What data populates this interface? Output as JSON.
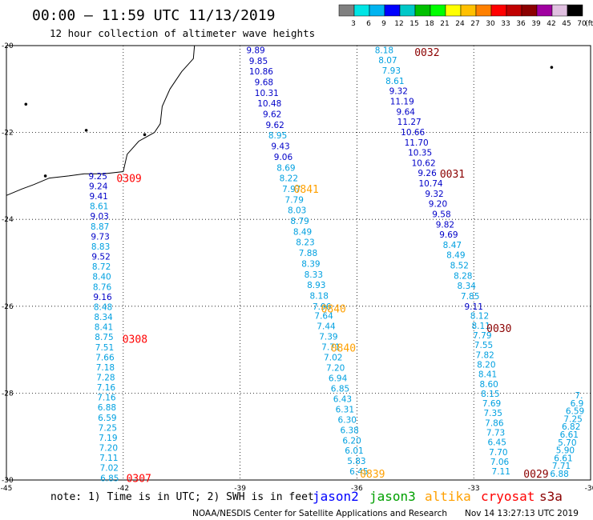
{
  "header": {
    "title": "00:00 – 11:59 UTC 11/13/2019",
    "subtitle": "12 hour collection of altimeter wave heights"
  },
  "colorbar": {
    "colors": [
      "#808080",
      "#00e5e5",
      "#00b4f0",
      "#0000ff",
      "#00c8c8",
      "#00c000",
      "#00ff00",
      "#ffff00",
      "#ffc000",
      "#ff8000",
      "#ff0000",
      "#c00000",
      "#8b0000",
      "#a000a0",
      "#e0c0e0",
      "#000000"
    ],
    "labels": [
      "3",
      "6",
      "9",
      "12",
      "15",
      "18",
      "21",
      "24",
      "27",
      "30",
      "33",
      "36",
      "39",
      "42",
      "45",
      "70"
    ],
    "unit": "(ft)"
  },
  "footer": {
    "note": "note: 1) Time is in UTC; 2) SWH is in feet",
    "legend": [
      {
        "name": "jason2",
        "color": "#0000ff"
      },
      {
        "name": "jason3",
        "color": "#00a000"
      },
      {
        "name": "altika",
        "color": "#ffa000"
      },
      {
        "name": "cryosat",
        "color": "#ff0000"
      },
      {
        "name": "s3a",
        "color": "#8b0000"
      }
    ],
    "credit": "NOAA/NESDIS Center for Satellite Applications and Research",
    "timestamp": "Nov 14 13:27:13 UTC 2019"
  },
  "chart_data": {
    "type": "scatter",
    "title": "00:00 – 11:59 UTC 11/13/2019",
    "subtitle": "12 hour collection of altimeter wave heights",
    "xlabel": "",
    "ylabel": "",
    "xlim": [
      -45,
      -30
    ],
    "ylim": [
      -30,
      -20
    ],
    "x_ticks": [
      -45,
      -42,
      -39,
      -36,
      -33,
      -30
    ],
    "y_ticks": [
      -20,
      -22,
      -24,
      -26,
      -28,
      -30
    ],
    "x_tick_labels": [
      "-45",
      "-42",
      "-39",
      "-36",
      "-33",
      "-30"
    ],
    "y_tick_labels": [
      "-20",
      "-22",
      "-24",
      "-26",
      "-28",
      "-30"
    ],
    "grid": true,
    "units": "feet",
    "series": [
      {
        "name": "track-a",
        "color": "#0000c8",
        "start": [
          -42.65,
          -23.0
        ],
        "end": [
          -42.35,
          -29.95
        ],
        "labels": [
          "9.25",
          "9.24",
          "9.41",
          "8.61",
          "9.03",
          "8.87",
          "9.73",
          "8.83",
          "9.52",
          "8.72",
          "8.40",
          "8.76",
          "9.16",
          "8.48",
          "8.34",
          "8.41",
          "8.75",
          "7.51",
          "7.66",
          "7.18",
          "7.28",
          "7.16",
          "7.16",
          "6.88",
          "6.59",
          "7.25",
          "7.19",
          "7.20",
          "7.11",
          "7.02",
          "6.85"
        ],
        "label_colors": [
          "#0000c8",
          "#0000c8",
          "#0000c8",
          "#00a0e0",
          "#0000c8",
          "#00a0e0",
          "#0000c8",
          "#00a0e0",
          "#0000c8",
          "#00a0e0",
          "#00a0e0",
          "#00a0e0",
          "#0000c8",
          "#00a0e0",
          "#00a0e0",
          "#00a0e0",
          "#00a0e0",
          "#00a0e0",
          "#00a0e0",
          "#00a0e0",
          "#00a0e0",
          "#00a0e0",
          "#00a0e0",
          "#00a0e0",
          "#00a0e0",
          "#00a0e0",
          "#00a0e0",
          "#00a0e0",
          "#00a0e0",
          "#00a0e0",
          "#00a0e0"
        ]
      },
      {
        "name": "track-b",
        "color": "#0000c8",
        "start": [
          -38.6,
          -20.1
        ],
        "end": [
          -36.9,
          -26.0
        ],
        "labels": [
          "9.89",
          "9.85",
          "10.86",
          "9.68",
          "10.31",
          "10.48",
          "9.62",
          "9.62",
          "8.95",
          "9.43",
          "9.06",
          "8.69",
          "8.22",
          "7.97",
          "7.79",
          "8.03",
          "8.79",
          "8.49",
          "8.23",
          "7.88",
          "8.39",
          "8.33",
          "8.93",
          "8.18",
          "7.96"
        ],
        "label_colors": [
          "#0000c8",
          "#0000c8",
          "#0000c8",
          "#0000c8",
          "#0000c8",
          "#0000c8",
          "#0000c8",
          "#0000c8",
          "#00a0e0",
          "#0000c8",
          "#0000c8",
          "#00a0e0",
          "#00a0e0",
          "#00a0e0",
          "#00a0e0",
          "#00a0e0",
          "#00a0e0",
          "#00a0e0",
          "#00a0e0",
          "#00a0e0",
          "#00a0e0",
          "#00a0e0",
          "#00a0e0",
          "#00a0e0",
          "#00a0e0"
        ]
      },
      {
        "name": "track-c",
        "color": "#00a0e0",
        "start": [
          -36.85,
          -26.22
        ],
        "end": [
          -35.95,
          -29.8
        ],
        "labels": [
          "7.64",
          "7.44",
          "7.39",
          "7.71",
          "7.02",
          "7.20",
          "6.94",
          "6.85",
          "6.43",
          "6.31",
          "6.30",
          "6.38",
          "6.20",
          "6.01",
          "5.83",
          "6.45"
        ],
        "label_colors": [
          "#00a0e0",
          "#00a0e0",
          "#00a0e0",
          "#00a0e0",
          "#00a0e0",
          "#00a0e0",
          "#00a0e0",
          "#00a0e0",
          "#00a0e0",
          "#00a0e0",
          "#00a0e0",
          "#00a0e0",
          "#00a0e0",
          "#00a0e0",
          "#00a0e0",
          "#00a0e0"
        ]
      },
      {
        "name": "track-d",
        "color": "#0000c8",
        "start": [
          -35.3,
          -20.1
        ],
        "end": [
          -33.0,
          -26.0
        ],
        "labels": [
          "8.18",
          "8.07",
          "7.93",
          "8.61",
          "9.32",
          "11.19",
          "9.64",
          "11.27",
          "10.66",
          "11.70",
          "10.35",
          "10.62",
          "9.26",
          "10.74",
          "9.32",
          "9.20",
          "9.58",
          "9.82",
          "9.69",
          "8.47",
          "8.49",
          "8.52",
          "8.28",
          "8.34",
          "7.85",
          "9.11"
        ],
        "label_colors": [
          "#00a0e0",
          "#00a0e0",
          "#00a0e0",
          "#00a0e0",
          "#0000c8",
          "#0000c8",
          "#0000c8",
          "#0000c8",
          "#0000c8",
          "#0000c8",
          "#0000c8",
          "#0000c8",
          "#0000c8",
          "#0000c8",
          "#0000c8",
          "#0000c8",
          "#0000c8",
          "#0000c8",
          "#0000c8",
          "#00a0e0",
          "#00a0e0",
          "#00a0e0",
          "#00a0e0",
          "#00a0e0",
          "#00a0e0",
          "#0000c8"
        ]
      },
      {
        "name": "track-e",
        "color": "#00a0e0",
        "start": [
          -32.85,
          -26.22
        ],
        "end": [
          -32.3,
          -29.8
        ],
        "labels": [
          "8.12",
          "8.11",
          "7.79",
          "7.55",
          "7.82",
          "8.20",
          "8.41",
          "8.60",
          "8.15",
          "7.69",
          "7.35",
          "7.86",
          "7.73",
          "6.45",
          "7.70",
          "7.06",
          "7.11"
        ],
        "label_colors": [
          "#00a0e0",
          "#00a0e0",
          "#00a0e0",
          "#00a0e0",
          "#00a0e0",
          "#00a0e0",
          "#00a0e0",
          "#00a0e0",
          "#00a0e0",
          "#00a0e0",
          "#00a0e0",
          "#00a0e0",
          "#00a0e0",
          "#00a0e0",
          "#00a0e0",
          "#00a0e0",
          "#00a0e0"
        ]
      },
      {
        "name": "track-f",
        "color": "#00a0e0",
        "start": [
          -30.3,
          -28.05
        ],
        "end": [
          -30.8,
          -29.85
        ],
        "labels": [
          "7.",
          "6.9",
          "6.59",
          "7.25",
          "6.82",
          "6.61",
          "5.70",
          "5.90",
          "6.61",
          "7.71",
          "6.88"
        ],
        "label_colors": [
          "#00a0e0",
          "#00a0e0",
          "#00a0e0",
          "#00a0e0",
          "#00a0e0",
          "#00a0e0",
          "#00a0e0",
          "#00a0e0",
          "#00a0e0",
          "#00a0e0",
          "#00a0e0"
        ]
      }
    ],
    "time_labels": [
      {
        "text": "0309",
        "x": -41.85,
        "y": -23.05,
        "color": "#ff0000"
      },
      {
        "text": "0308",
        "x": -41.7,
        "y": -26.75,
        "color": "#ff0000"
      },
      {
        "text": "0307",
        "x": -41.6,
        "y": -29.95,
        "color": "#ff0000"
      },
      {
        "text": "0841",
        "x": -37.3,
        "y": -23.3,
        "color": "#ffa000"
      },
      {
        "text": "0840",
        "x": -36.6,
        "y": -26.05,
        "color": "#ffa000"
      },
      {
        "text": "0840",
        "x": -36.35,
        "y": -26.95,
        "color": "#ffa000"
      },
      {
        "text": "0839",
        "x": -35.6,
        "y": -29.85,
        "color": "#ffa000"
      },
      {
        "text": "0032",
        "x": -34.2,
        "y": -20.15,
        "color": "#8b0000"
      },
      {
        "text": "0031",
        "x": -33.55,
        "y": -22.95,
        "color": "#8b0000"
      },
      {
        "text": "0030",
        "x": -32.35,
        "y": -26.5,
        "color": "#8b0000"
      },
      {
        "text": "0029",
        "x": -31.4,
        "y": -29.85,
        "color": "#8b0000"
      }
    ],
    "coastline": [
      [
        -40.17,
        -20.0
      ],
      [
        -40.2,
        -20.3
      ],
      [
        -40.5,
        -20.6
      ],
      [
        -40.8,
        -21.0
      ],
      [
        -41.0,
        -21.4
      ],
      [
        -41.05,
        -21.8
      ],
      [
        -41.2,
        -22.0
      ],
      [
        -41.6,
        -22.2
      ],
      [
        -41.9,
        -22.5
      ],
      [
        -42.0,
        -22.9
      ],
      [
        -42.5,
        -22.95
      ],
      [
        -43.0,
        -22.95
      ],
      [
        -43.4,
        -23.0
      ],
      [
        -43.9,
        -23.05
      ],
      [
        -44.3,
        -23.2
      ],
      [
        -44.6,
        -23.3
      ],
      [
        -45.0,
        -23.45
      ]
    ],
    "islands": [
      [
        -44.5,
        -21.35
      ],
      [
        -42.95,
        -21.95
      ],
      [
        -41.45,
        -22.05
      ],
      [
        -31.0,
        -20.5
      ],
      [
        -44.0,
        -23.0
      ]
    ]
  }
}
